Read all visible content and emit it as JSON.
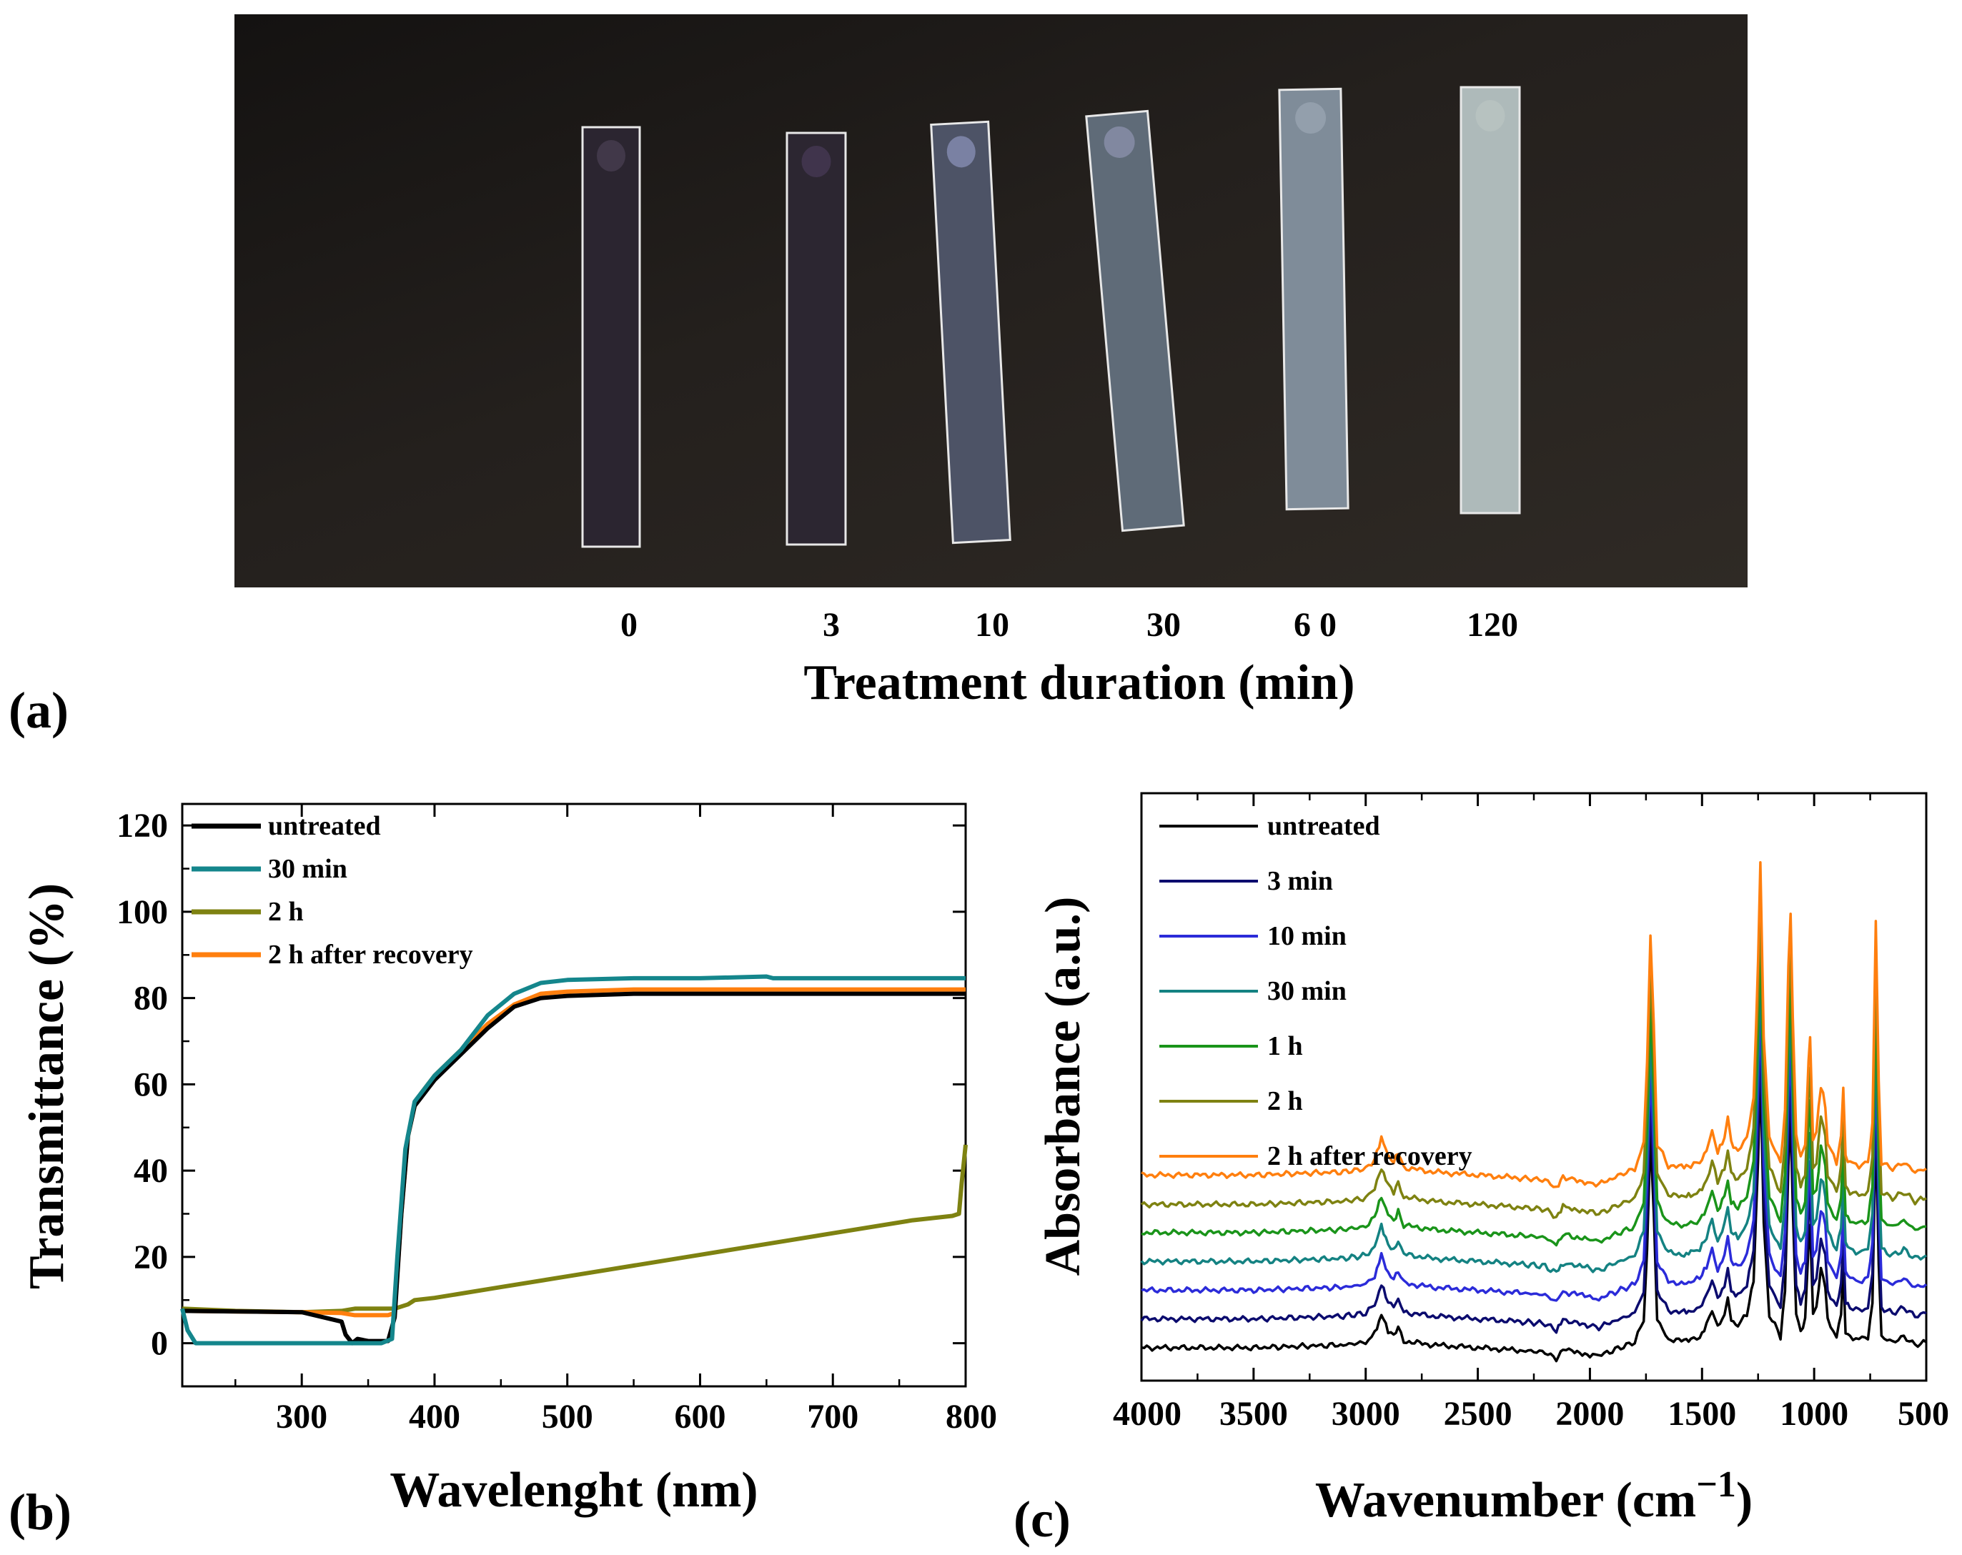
{
  "panels": {
    "a": "(a)",
    "b": "(b)",
    "c": "(c)"
  },
  "panel_a": {
    "xlabel": "Treatment duration (min)",
    "samples": [
      {
        "label": "0",
        "color": "#2b2530",
        "tint": "#4a3f52"
      },
      {
        "label": "3",
        "color": "#2c2631",
        "tint": "#473a55"
      },
      {
        "label": "10",
        "color": "#4d5366",
        "tint": "#8a90b8"
      },
      {
        "label": "30",
        "color": "#5f6b78",
        "tint": "#8c92ad"
      },
      {
        "label": "6 0",
        "color": "#7f8c99",
        "tint": "#9aa6b3"
      },
      {
        "label": "120",
        "color": "#aebaba",
        "tint": "#b9c4c2"
      }
    ]
  },
  "chart_data": [
    {
      "id": "b",
      "type": "line",
      "title": "",
      "xlabel": "Wavelenght (nm)",
      "ylabel": "Transmittance (%)",
      "xlim": [
        210,
        800
      ],
      "ylim": [
        -10,
        125
      ],
      "xticks": [
        300,
        400,
        500,
        600,
        700,
        800
      ],
      "yticks": [
        0,
        20,
        40,
        60,
        80,
        100,
        120
      ],
      "legend": "top-left",
      "series": [
        {
          "name": "untreated",
          "color": "#000000",
          "x": [
            210,
            300,
            330,
            333,
            338,
            342,
            350,
            365,
            370,
            375,
            380,
            385,
            390,
            400,
            420,
            440,
            460,
            480,
            500,
            550,
            600,
            700,
            800
          ],
          "y": [
            7.5,
            7.2,
            5,
            2,
            0,
            1,
            0.5,
            0.5,
            6,
            30,
            48,
            55,
            57,
            61,
            67,
            73,
            78,
            80,
            80.5,
            81,
            81,
            81,
            81
          ]
        },
        {
          "name": "30 min",
          "color": "#14868c",
          "x": [
            210,
            214,
            220,
            250,
            300,
            360,
            368,
            372,
            378,
            385,
            390,
            400,
            420,
            440,
            460,
            480,
            500,
            550,
            600,
            650,
            655,
            700,
            800
          ],
          "y": [
            8,
            3,
            0,
            0,
            0,
            0,
            1,
            20,
            45,
            56,
            58,
            62,
            68,
            76,
            81,
            83.5,
            84.2,
            84.6,
            84.6,
            85,
            84.6,
            84.6,
            84.6
          ]
        },
        {
          "name": "2 h",
          "color": "#7e8211",
          "x": [
            210,
            250,
            300,
            330,
            340,
            370,
            380,
            385,
            400,
            450,
            500,
            550,
            600,
            650,
            700,
            760,
            790,
            795,
            797,
            800
          ],
          "y": [
            8,
            7.5,
            7.2,
            7.5,
            8,
            8,
            9,
            10,
            10.5,
            13,
            15.5,
            18,
            20.5,
            23,
            25.5,
            28.5,
            29.5,
            30,
            37,
            46
          ]
        },
        {
          "name": "2 h after recovery",
          "color": "#ff7f0e",
          "x": [
            210,
            300,
            330,
            340,
            350,
            365,
            370,
            375,
            380,
            385,
            390,
            400,
            420,
            440,
            460,
            480,
            500,
            550,
            600,
            700,
            800
          ],
          "y": [
            7.5,
            7.2,
            7,
            6.5,
            6.5,
            6.5,
            7,
            30,
            48,
            55,
            58,
            62,
            68,
            74,
            78.5,
            81,
            81.5,
            82,
            82,
            82,
            82
          ]
        }
      ]
    },
    {
      "id": "c",
      "type": "line",
      "title": "",
      "xlabel": "Wavenumber (cm",
      "xlabel_sup": "−1",
      "xlabel_close": ")",
      "ylabel": "Absorbance (a.u.)",
      "xlim": [
        4000,
        500
      ],
      "ylim": [
        0,
        1
      ],
      "xticks": [
        4000,
        3500,
        3000,
        2500,
        2000,
        1500,
        1000,
        500
      ],
      "legend": "top-left",
      "baselines": [
        0.056,
        0.105,
        0.154,
        0.203,
        0.252,
        0.3,
        0.35
      ],
      "spectrum_template": {
        "x": [
          4000,
          3500,
          3100,
          3000,
          2960,
          2930,
          2900,
          2875,
          2855,
          2830,
          2700,
          2500,
          2300,
          2200,
          2150,
          2120,
          2080,
          2000,
          1960,
          1900,
          1800,
          1760,
          1745,
          1730,
          1715,
          1700,
          1650,
          1580,
          1550,
          1510,
          1480,
          1455,
          1430,
          1400,
          1385,
          1370,
          1340,
          1300,
          1270,
          1250,
          1240,
          1225,
          1200,
          1150,
          1130,
          1115,
          1105,
          1095,
          1080,
          1060,
          1040,
          1025,
          1018,
          1005,
          990,
          970,
          960,
          950,
          940,
          900,
          880,
          870,
          860,
          840,
          800,
          760,
          740,
          725,
          712,
          700,
          650,
          600,
          550,
          500
        ],
        "y": [
          0,
          0,
          0.005,
          0.01,
          0.025,
          0.06,
          0.03,
          0.02,
          0.035,
          0.012,
          0.005,
          0,
          -0.005,
          -0.008,
          -0.02,
          -0.003,
          -0.006,
          -0.012,
          -0.015,
          -0.005,
          0.01,
          0.05,
          0.18,
          0.38,
          0.24,
          0.05,
          0.015,
          0.012,
          0.015,
          0.02,
          0.04,
          0.07,
          0.035,
          0.06,
          0.09,
          0.05,
          0.04,
          0.06,
          0.12,
          0.34,
          0.5,
          0.22,
          0.06,
          0.02,
          0.1,
          0.33,
          0.42,
          0.25,
          0.06,
          0.03,
          0.05,
          0.18,
          0.22,
          0.06,
          0.07,
          0.14,
          0.13,
          0.11,
          0.05,
          0.02,
          0.06,
          0.14,
          0.03,
          0.02,
          0.015,
          0.02,
          0.08,
          0.4,
          0.15,
          0.02,
          0.01,
          0.02,
          0.005,
          0.01
        ]
      },
      "series": [
        {
          "name": "untreated",
          "color": "#000000"
        },
        {
          "name": "3 min",
          "color": "#0b0b6e"
        },
        {
          "name": "10 min",
          "color": "#2b2bd9"
        },
        {
          "name": "30 min",
          "color": "#148282"
        },
        {
          "name": "1 h",
          "color": "#1a941a"
        },
        {
          "name": "2 h",
          "color": "#7e8211"
        },
        {
          "name": "2 h after recovery",
          "color": "#ff7f0e"
        }
      ]
    }
  ]
}
